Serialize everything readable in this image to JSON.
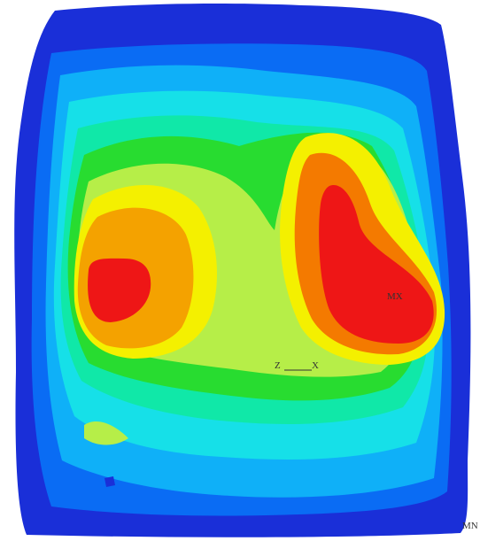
{
  "labels": {
    "max": "MX",
    "min": "MN",
    "axis_z": "Z",
    "axis_x": "X"
  }
}
